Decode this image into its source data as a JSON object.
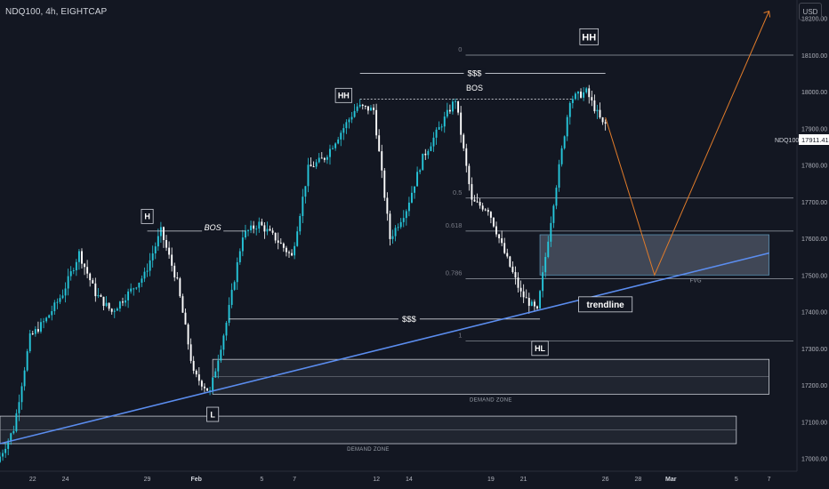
{
  "header": {
    "symbol_title": "NDQ100, 4h, EIGHTCAP",
    "currency_button": "USD"
  },
  "chart_data": {
    "type": "candlestick",
    "symbol": "NDQ100",
    "timeframe": "4h",
    "broker": "EIGHTCAP",
    "y_axis": {
      "range": [
        16960,
        18260
      ],
      "ticks": [
        17000,
        17100,
        17200,
        17300,
        17400,
        17500,
        17600,
        17700,
        17800,
        17900,
        18000,
        18100,
        18200
      ]
    },
    "x_axis": {
      "range": [
        "Jan 20",
        "Mar 8"
      ],
      "ticks": [
        {
          "date": "Jan 22",
          "label": "22"
        },
        {
          "date": "Jan 24",
          "label": "24"
        },
        {
          "date": "Jan 29",
          "label": "29"
        },
        {
          "date": "Feb 1",
          "label": "Feb"
        },
        {
          "date": "Feb 5",
          "label": "5"
        },
        {
          "date": "Feb 7",
          "label": "7"
        },
        {
          "date": "Feb 12",
          "label": "12"
        },
        {
          "date": "Feb 14",
          "label": "14"
        },
        {
          "date": "Feb 19",
          "label": "19"
        },
        {
          "date": "Feb 21",
          "label": "21"
        },
        {
          "date": "Feb 26",
          "label": "26"
        },
        {
          "date": "Feb 28",
          "label": "28"
        },
        {
          "date": "Mar 1",
          "label": "Mar"
        },
        {
          "date": "Mar 5",
          "label": "5"
        },
        {
          "date": "Mar 7",
          "label": "7"
        }
      ]
    },
    "last_price": {
      "label": "NDQ100",
      "value": "17911.41"
    },
    "price_path": [
      [
        "Jan 20",
        16990
      ],
      [
        "Jan 21",
        17080
      ],
      [
        "Jan 22",
        17330
      ],
      [
        "Jan 23",
        17380
      ],
      [
        "Jan 24",
        17450
      ],
      [
        "Jan 25",
        17560
      ],
      [
        "Jan 26",
        17450
      ],
      [
        "Jan 27",
        17400
      ],
      [
        "Jan 29",
        17500
      ],
      [
        "Jan 30",
        17620
      ],
      [
        "Jan 31",
        17480
      ],
      [
        "Feb 1",
        17230
      ],
      [
        "Feb 2",
        17180
      ],
      [
        "Feb 3",
        17370
      ],
      [
        "Feb 4",
        17610
      ],
      [
        "Feb 5",
        17640
      ],
      [
        "Feb 6",
        17600
      ],
      [
        "Feb 7",
        17550
      ],
      [
        "Feb 8",
        17790
      ],
      [
        "Feb 9",
        17820
      ],
      [
        "Feb 11",
        17960
      ],
      [
        "Feb 12",
        17950
      ],
      [
        "Feb 13",
        17600
      ],
      [
        "Feb 14",
        17680
      ],
      [
        "Feb 15",
        17820
      ],
      [
        "Feb 16",
        17900
      ],
      [
        "Feb 17",
        17980
      ],
      [
        "Feb 18",
        17700
      ],
      [
        "Feb 19",
        17680
      ],
      [
        "Feb 20",
        17560
      ],
      [
        "Feb 21",
        17450
      ],
      [
        "Feb 22",
        17400
      ],
      [
        "Feb 23",
        17700
      ],
      [
        "Feb 24",
        17980
      ],
      [
        "Feb 25",
        18000
      ],
      [
        "Feb 26",
        17911.41
      ]
    ],
    "fib_levels": [
      {
        "label": "0",
        "price": 18100
      },
      {
        "label": "0.5",
        "price": 17710
      },
      {
        "label": "0.618",
        "price": 17620
      },
      {
        "label": "0.786",
        "price": 17490
      },
      {
        "label": "1",
        "price": 17320
      }
    ],
    "zones": [
      {
        "label": "DEMAND ZONE",
        "from": "Feb 2",
        "to": "Mar 7",
        "low": 17175,
        "high": 17270
      },
      {
        "label": "DEMAND ZONE",
        "from": "Jan 20",
        "to": "Mar 5",
        "low": 17040,
        "high": 17115
      },
      {
        "label": "FVG",
        "from": "Feb 22",
        "to": "Mar 7",
        "low": 17500,
        "high": 17610
      }
    ],
    "annotations": [
      {
        "label": "HH",
        "date": "Feb 10",
        "price": 17990
      },
      {
        "label": "HH",
        "date": "Feb 25",
        "price": 18150
      },
      {
        "label": "H",
        "date": "Jan 29",
        "price": 17660
      },
      {
        "label": "L",
        "date": "Feb 2",
        "price": 17120
      },
      {
        "label": "HL",
        "date": "Feb 22",
        "price": 17300
      },
      {
        "label": "BOS",
        "date": "Feb 18",
        "price": 18010
      },
      {
        "label": "BOS",
        "date": "Feb 2",
        "price": 17630
      },
      {
        "label": "$$$",
        "date": "Feb 18",
        "price": 18050
      },
      {
        "label": "$$$",
        "date": "Feb 14",
        "price": 17380
      },
      {
        "label": "trendline",
        "date": "Feb 26",
        "price": 17420
      }
    ],
    "levels": [
      {
        "from": "Feb 11",
        "to": "Feb 26",
        "price": 18050
      },
      {
        "from": "Feb 11",
        "to": "Feb 24",
        "price": 17980
      },
      {
        "from": "Jan 29",
        "to": "Feb 4",
        "price": 17620
      },
      {
        "from": "Feb 3",
        "to": "Feb 22",
        "price": 17380
      }
    ],
    "trendline": {
      "from": [
        "Jan 20",
        17040
      ],
      "to": [
        "Mar 7",
        17560
      ]
    },
    "projection": [
      [
        "Feb 26",
        17930
      ],
      [
        "Feb 29",
        17500
      ],
      [
        "Mar 7",
        18220
      ]
    ],
    "grid": false
  }
}
